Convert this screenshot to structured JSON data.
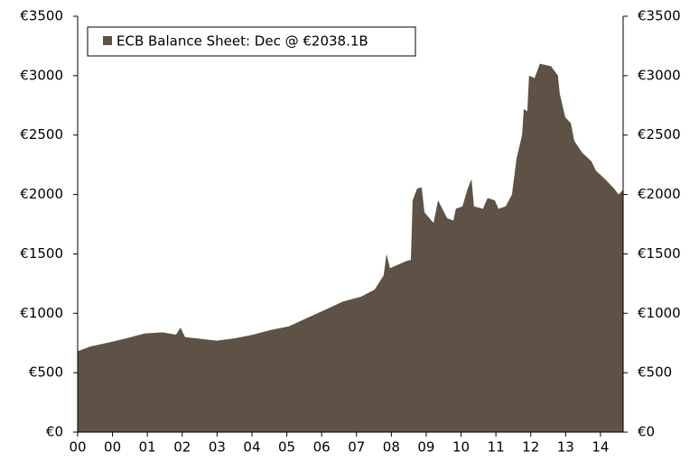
{
  "chart_data": {
    "type": "area",
    "x": [
      0,
      0.36,
      0.98,
      1.4,
      1.92,
      2.44,
      2.82,
      2.95,
      3.08,
      3.99,
      4.51,
      5.03,
      5.54,
      6.06,
      6.58,
      7.1,
      7.62,
      8.13,
      8.52,
      8.78,
      8.86,
      8.96,
      9.43,
      9.56,
      9.61,
      9.74,
      9.87,
      9.95,
      10.21,
      10.34,
      10.6,
      10.78,
      10.85,
      11.04,
      11.19,
      11.3,
      11.37,
      11.63,
      11.76,
      11.97,
      12.07,
      12.28,
      12.46,
      12.59,
      12.75,
      12.8,
      12.9,
      12.95,
      13.11,
      13.26,
      13.58,
      13.78,
      13.83,
      13.99,
      14.15,
      14.25,
      14.48,
      14.74,
      14.87,
      15.13,
      15.39,
      15.52,
      15.65
    ],
    "series": [
      {
        "name": "ECB Balance Sheet: Dec @ €2038.1B",
        "color": "#5e5246",
        "values": [
          680,
          720,
          760,
          790,
          830,
          840,
          820,
          880,
          800,
          770,
          790,
          820,
          860,
          890,
          960,
          1030,
          1100,
          1140,
          1200,
          1320,
          1500,
          1380,
          1440,
          1450,
          1950,
          2050,
          2060,
          1850,
          1760,
          1950,
          1800,
          1780,
          1880,
          1900,
          2050,
          2130,
          1900,
          1880,
          1970,
          1950,
          1880,
          1900,
          2000,
          2300,
          2500,
          2720,
          2700,
          3000,
          2980,
          3100,
          3080,
          3000,
          2850,
          2650,
          2600,
          2450,
          2350,
          2280,
          2200,
          2130,
          2050,
          2000,
          2040
        ]
      }
    ],
    "xlim": [
      0,
      15.65
    ],
    "xticks": [
      {
        "value": 0,
        "label": "00"
      },
      {
        "value": 1,
        "label": "00"
      },
      {
        "value": 2,
        "label": "01"
      },
      {
        "value": 3,
        "label": "02"
      },
      {
        "value": 4,
        "label": "03"
      },
      {
        "value": 5,
        "label": "04"
      },
      {
        "value": 6,
        "label": "05"
      },
      {
        "value": 7,
        "label": "06"
      },
      {
        "value": 8,
        "label": "07"
      },
      {
        "value": 9,
        "label": "08"
      },
      {
        "value": 10,
        "label": "09"
      },
      {
        "value": 11,
        "label": "10"
      },
      {
        "value": 12,
        "label": "11"
      },
      {
        "value": 13,
        "label": "12"
      },
      {
        "value": 14,
        "label": "13"
      },
      {
        "value": 15,
        "label": "14"
      }
    ],
    "ylim": [
      0,
      3500
    ],
    "yticks": [
      {
        "value": 0,
        "label": "€0"
      },
      {
        "value": 500,
        "label": "€500"
      },
      {
        "value": 1000,
        "label": "€1000"
      },
      {
        "value": 1500,
        "label": "€1500"
      },
      {
        "value": 2000,
        "label": "€2000"
      },
      {
        "value": 2500,
        "label": "€2500"
      },
      {
        "value": 3000,
        "label": "€3000"
      },
      {
        "value": 3500,
        "label": "€3500"
      }
    ],
    "y2lim": [
      0,
      3500
    ],
    "y2ticks": [
      {
        "value": 0,
        "label": "€0"
      },
      {
        "value": 500,
        "label": "€500"
      },
      {
        "value": 1000,
        "label": "€1000"
      },
      {
        "value": 1500,
        "label": "€1500"
      },
      {
        "value": 2000,
        "label": "€2000"
      },
      {
        "value": 2500,
        "label": "€2500"
      },
      {
        "value": 3000,
        "label": "€3000"
      },
      {
        "value": 3500,
        "label": "€3500"
      }
    ],
    "legend": "top-left",
    "grid": false
  }
}
